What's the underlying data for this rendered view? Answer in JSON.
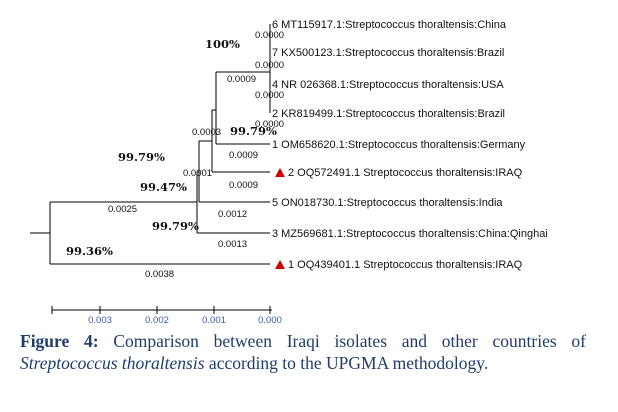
{
  "leaves": [
    {
      "label": "6 MT115917.1:Streptococcus thoraltensis:China",
      "marker": false
    },
    {
      "label": "7 KX500123.1:Streptococcus thoraltensis:Brazil",
      "marker": false
    },
    {
      "label": "4 NR 026368.1:Streptococcus thoraltensis:USA",
      "marker": false
    },
    {
      "label": "2 KR819499.1:Streptococcus thoraltensis:Brazil",
      "marker": false
    },
    {
      "label": "1 OM658620.1:Streptococcus thoraltensis:Germany",
      "marker": false
    },
    {
      "label": "2 OQ572491.1 Streptococcus thoraltensis:IRAQ",
      "marker": true
    },
    {
      "label": "5 ON018730.1:Streptococcus thoraltensis:India",
      "marker": false
    },
    {
      "label": "3 MZ569681.1:Streptococcus thoraltensis:China:Qinghai",
      "marker": false
    },
    {
      "label": "1 OQ439401.1 Streptococcus thoraltensis:IRAQ",
      "marker": true
    }
  ],
  "branch_lengths": {
    "l1": "0.0000",
    "l2": "0.0000",
    "l3": "0.0000",
    "l4": "0.0000",
    "grp1": "0.0009",
    "c3": "0.0003",
    "l5": "0.0009",
    "c4": "0.0001",
    "l6": "0.0009",
    "l7": "0.0012",
    "c6": "0.0025",
    "l8": "0.0013",
    "l9": "0.0038"
  },
  "bootstrap": [
    "100%",
    "99.79%",
    "99.79%",
    "99.47%",
    "99.79%",
    "99.36%"
  ],
  "scale_labels": [
    "0.003",
    "0.002",
    "0.001",
    "0.000"
  ],
  "caption": {
    "figure_label": "Figure 4:",
    "text_before": " Comparison between Iraqi isolates and other countries of ",
    "species": "Streptococcus thoraltensis",
    "text_after": " according to the UPGMA methodology."
  },
  "colors": {
    "marker": "#d00000",
    "caption": "#1f3d6b",
    "scale_text": "#3b5ea8"
  }
}
